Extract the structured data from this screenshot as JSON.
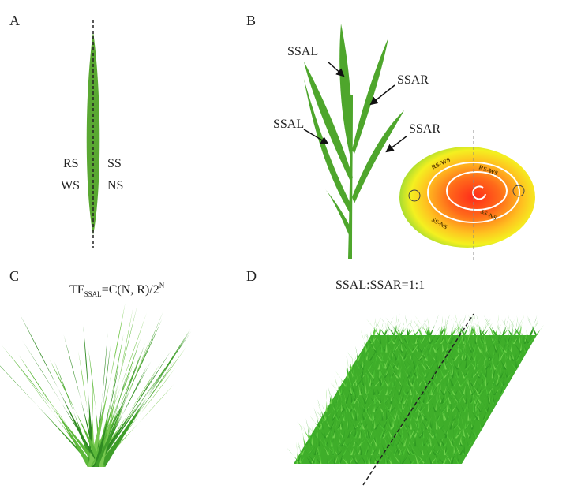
{
  "panels": [
    {
      "label": "A",
      "texts": [
        "RS",
        "SS",
        "WS",
        "NS"
      ]
    },
    {
      "label": "B",
      "arrows": [
        "SSAL",
        "SSAR",
        "SSAL",
        "SSAR"
      ],
      "heatmap_labels": [
        "RS-WS",
        "RS-WS",
        "SS-NS",
        "SS-NS"
      ]
    },
    {
      "label": "C",
      "formula": {
        "main": "TF",
        "subscript": "SSAL",
        "rest": "=C(N, R)/2",
        "superscript": "N"
      }
    },
    {
      "label": "D",
      "ratio": "SSAL:SSAR=1:1"
    }
  ]
}
